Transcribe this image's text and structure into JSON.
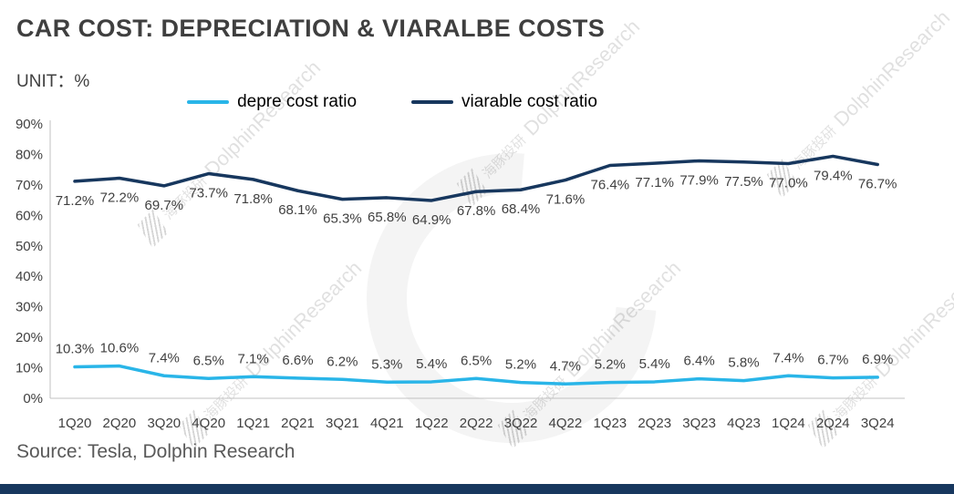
{
  "title": "CAR COST: DEPRECIATION & VIARALBE COSTS",
  "unit_label": "UNIT：%",
  "source": "Source: Tesla, Dolphin Research",
  "watermark": {
    "cn": "海豚投研",
    "en": "DolphinResearch"
  },
  "colors": {
    "depre": "#29b5e8",
    "viarable": "#17375e",
    "title_text": "#3f3f3f",
    "footer_bar": "#17375e",
    "axis": "#c0c0c0",
    "label_text": "#404040"
  },
  "chart_data": {
    "type": "line",
    "title": "CAR COST: DEPRECIATION & VIARALBE COSTS",
    "xlabel": "",
    "ylabel": "UNIT：%",
    "ylim": [
      0,
      90
    ],
    "ytick_step": 10,
    "grid": false,
    "legend_position": "top",
    "categories": [
      "1Q20",
      "2Q20",
      "3Q20",
      "4Q20",
      "1Q21",
      "2Q21",
      "3Q21",
      "4Q21",
      "1Q22",
      "2Q22",
      "3Q22",
      "4Q22",
      "1Q23",
      "2Q23",
      "3Q23",
      "4Q23",
      "1Q24",
      "2Q24",
      "3Q24"
    ],
    "series": [
      {
        "name": "depre cost ratio",
        "color_key": "depre",
        "label_offset": -15,
        "values": [
          10.3,
          10.6,
          7.4,
          6.5,
          7.1,
          6.6,
          6.2,
          5.3,
          5.4,
          6.5,
          5.2,
          4.7,
          5.2,
          5.4,
          6.4,
          5.8,
          7.4,
          6.7,
          6.9
        ]
      },
      {
        "name": "viarable cost ratio",
        "color_key": "viarable",
        "label_offset": 26,
        "values": [
          71.2,
          72.2,
          69.7,
          73.7,
          71.8,
          68.1,
          65.3,
          65.8,
          64.9,
          67.8,
          68.4,
          71.6,
          76.4,
          77.1,
          77.9,
          77.5,
          77.0,
          79.4,
          76.7
        ]
      }
    ]
  }
}
